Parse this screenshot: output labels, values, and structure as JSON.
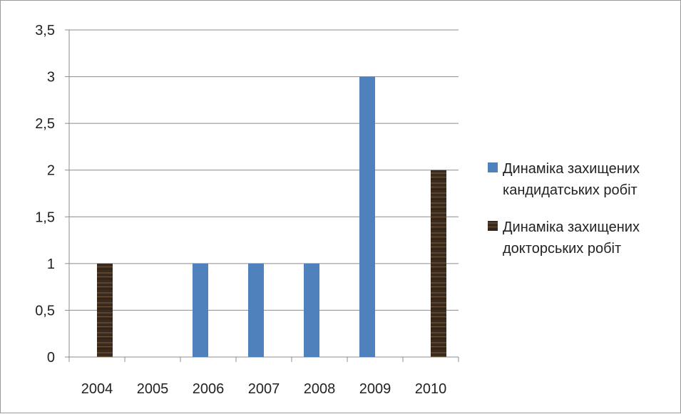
{
  "chart_data": {
    "type": "bar",
    "categories": [
      "2004",
      "2005",
      "2006",
      "2007",
      "2008",
      "2009",
      "2010"
    ],
    "series": [
      {
        "name": "Динаміка захищених кандидатських робіт",
        "name_lines": [
          "Динаміка захищених",
          "кандидатських робіт"
        ],
        "color": "#4f81bd",
        "values": [
          0,
          0,
          1,
          1,
          1,
          3,
          0
        ]
      },
      {
        "name": "Динаміка захищених докторських робіт",
        "name_lines": [
          "Динаміка захищених",
          "докторських робіт"
        ],
        "color": "#3b2a1e",
        "values": [
          1,
          0,
          0,
          0,
          0,
          0,
          2
        ]
      }
    ],
    "ylim": [
      0,
      3.5
    ],
    "y_ticks": [
      "0",
      "0,5",
      "1",
      "1,5",
      "2",
      "2,5",
      "3",
      "3,5"
    ],
    "grid": true,
    "legend": "right",
    "title": "",
    "xlabel": "",
    "ylabel": ""
  }
}
